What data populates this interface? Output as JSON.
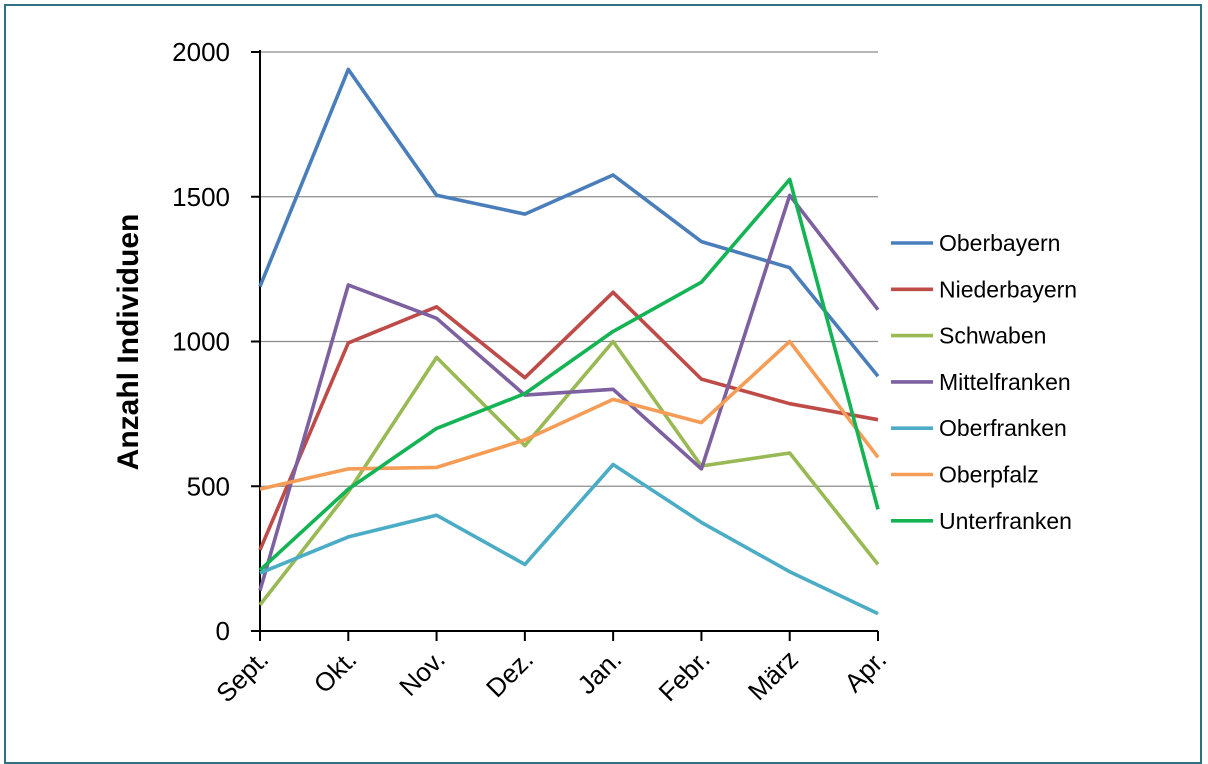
{
  "chart_data": {
    "type": "line",
    "title": "",
    "xlabel": "",
    "ylabel": "Anzahl Individuen",
    "ylim": [
      0,
      2000
    ],
    "yticks": [
      0,
      500,
      1000,
      1500,
      2000
    ],
    "categories": [
      "Sept.",
      "Okt.",
      "Nov.",
      "Dez.",
      "Jan.",
      "Febr.",
      "März",
      "Apr."
    ],
    "grid": true,
    "legend_position": "right",
    "series": [
      {
        "name": "Oberbayern",
        "color": "#4a7ebb",
        "values": [
          1190,
          1940,
          1505,
          1440,
          1575,
          1345,
          1255,
          880
        ]
      },
      {
        "name": "Niederbayern",
        "color": "#be4b48",
        "values": [
          280,
          995,
          1120,
          875,
          1170,
          870,
          785,
          730
        ]
      },
      {
        "name": "Schwaben",
        "color": "#98b954",
        "values": [
          90,
          480,
          945,
          640,
          1000,
          570,
          615,
          230
        ]
      },
      {
        "name": "Mittelfranken",
        "color": "#7d60a0",
        "values": [
          140,
          1195,
          1080,
          815,
          835,
          560,
          1505,
          1110
        ]
      },
      {
        "name": "Oberfranken",
        "color": "#4bacc6",
        "values": [
          200,
          325,
          400,
          230,
          575,
          375,
          205,
          60
        ]
      },
      {
        "name": "Oberpfalz",
        "color": "#f59d56",
        "values": [
          490,
          560,
          565,
          660,
          800,
          720,
          1000,
          600
        ]
      },
      {
        "name": "Unterfranken",
        "color": "#14b455",
        "values": [
          210,
          490,
          700,
          820,
          1035,
          1205,
          1560,
          420
        ]
      }
    ]
  }
}
